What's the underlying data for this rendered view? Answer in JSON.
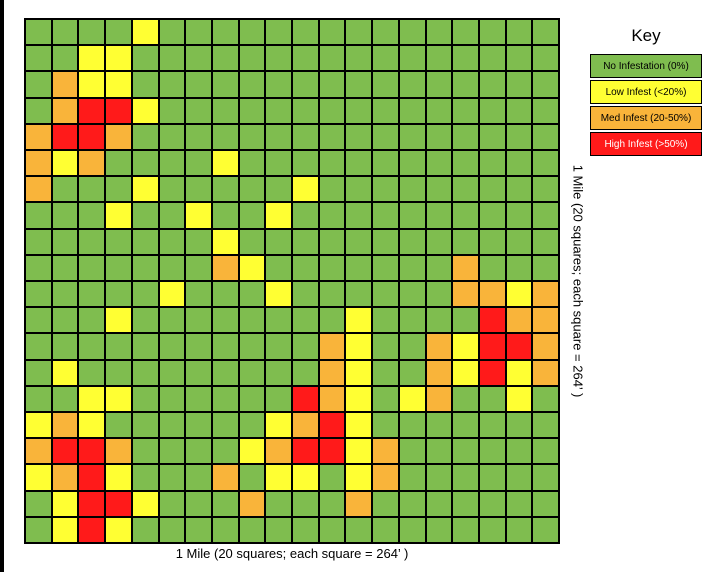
{
  "key": {
    "title": "Key",
    "items": [
      {
        "label": "No Infestation (0%)",
        "color": "#7fbd4f",
        "text_color": "#000000"
      },
      {
        "label": "Low Infest (<20%)",
        "color": "#ffff33",
        "text_color": "#000000"
      },
      {
        "label": "Med Infest (20-50%)",
        "color": "#f9b43a",
        "text_color": "#000000"
      },
      {
        "label": "High Infest (>50%)",
        "color": "#ff1a1a",
        "text_color": "#ffffff"
      }
    ]
  },
  "axis": {
    "bottom": "1 Mile (20 squares; each square = 264’ )",
    "right": "1 Mile (20 squares; each square = 264’ )"
  },
  "legend_codes": {
    "G": 0,
    "Y": 1,
    "O": 2,
    "R": 3
  },
  "grid_rows": [
    "GGGGYGGGGGGGGGGGGGGG",
    "GGYYGGGGGGGGGGGGGGGG",
    "GOYYGGGGGGGGGGGGGGGG",
    "GORRYGGGGGGGGGGGGGGG",
    "ORROGGGGGGGGGGGGGGGG",
    "OYOGGGGYGGGGGGGGGGGG",
    "OGGGYGGGGGYGGGGGGGGG",
    "GGGYGGYGGYGGGGGGGGGG",
    "GGGGGGGYGGGGGGGGGGGG",
    "GGGGGGGOYGGGGGGGOGGG",
    "GGGGGYGGGYGGGGGGOOYO",
    "GGGYGGGGGGGGYGGGGROO",
    "GGGGGGGGGGGOYGGOYRRO",
    "GYGGGGGGGGGOYGGOYRYO",
    "GGYYGGGGGGROYGYOGGYG",
    "YOYGGGGGGYORYGGGGGGG",
    "ORROGGGGYORRYOGGGGGG",
    "YORYGGGOGYYGYOGGGGGG",
    "GYRRYGGGOGGGOGGGGGGG",
    "GYRYGGGGGGGGGGGGGGGG"
  ]
}
